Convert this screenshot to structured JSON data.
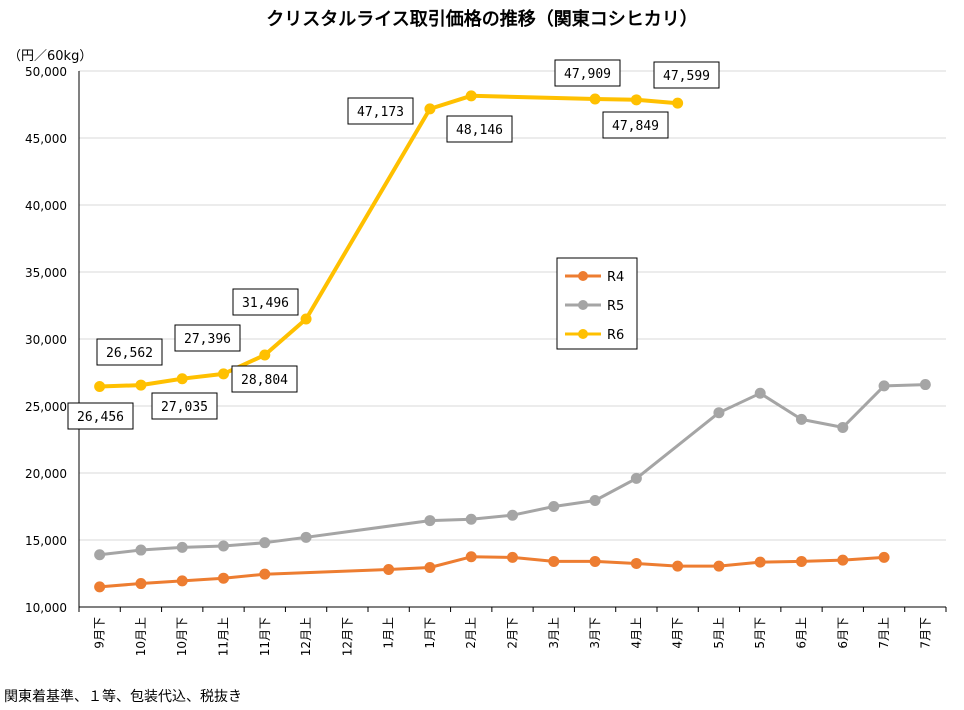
{
  "chart_data": {
    "type": "line",
    "title": "クリスタルライス取引価格の推移（関東コシヒカリ）",
    "unit_label": "（円／60kg）",
    "ylim": [
      10000,
      50000
    ],
    "yticks": [
      10000,
      15000,
      20000,
      25000,
      30000,
      35000,
      40000,
      45000,
      50000
    ],
    "ytick_labels": [
      "10,000",
      "15,000",
      "20,000",
      "25,000",
      "30,000",
      "35,000",
      "40,000",
      "45,000",
      "50,000"
    ],
    "categories": [
      "9月下",
      "10月上",
      "10月下",
      "11月上",
      "11月下",
      "12月上",
      "12月下",
      "1月上",
      "1月下",
      "2月上",
      "2月下",
      "3月上",
      "3月下",
      "4月上",
      "4月下",
      "5月上",
      "5月下",
      "6月上",
      "6月下",
      "7月上",
      "7月下"
    ],
    "grid": true,
    "legend_position": "center-right",
    "series": [
      {
        "name": "R4",
        "color": "#ED7D31",
        "values": [
          11500,
          11750,
          11950,
          12150,
          12450,
          null,
          null,
          12800,
          12950,
          13750,
          13700,
          13400,
          13400,
          13250,
          13050,
          13050,
          13350,
          13400,
          13500,
          13700,
          null
        ]
      },
      {
        "name": "R5",
        "color": "#A5A5A5",
        "values": [
          13900,
          14250,
          14450,
          14550,
          14800,
          15200,
          null,
          null,
          16450,
          16550,
          16850,
          17500,
          17950,
          19600,
          null,
          24500,
          25950,
          24000,
          23400,
          26500,
          26600
        ]
      },
      {
        "name": "R6",
        "color": "#FFC000",
        "values": [
          26456,
          26562,
          27035,
          27396,
          28804,
          31496,
          null,
          null,
          47173,
          48146,
          null,
          null,
          47909,
          47849,
          47599,
          null,
          null,
          null,
          null,
          null,
          null
        ]
      }
    ],
    "data_labels": [
      {
        "text": "26,562"
      },
      {
        "text": "26,456"
      },
      {
        "text": "27,035"
      },
      {
        "text": "27,396"
      },
      {
        "text": "28,804"
      },
      {
        "text": "31,496"
      },
      {
        "text": "47,173"
      },
      {
        "text": "48,146"
      },
      {
        "text": "47,909"
      },
      {
        "text": "47,849"
      },
      {
        "text": "47,599"
      }
    ]
  },
  "footnote": "関東着基準、１等、包装代込、税抜き"
}
